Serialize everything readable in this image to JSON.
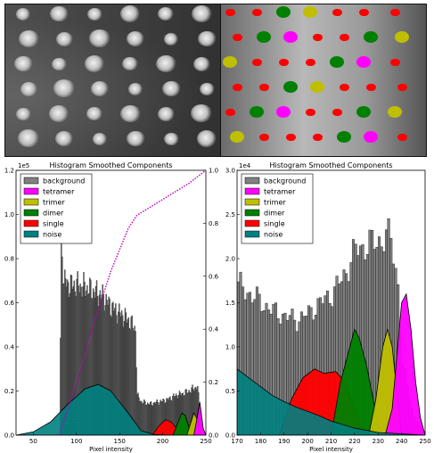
{
  "colors": {
    "background": "#808080",
    "tetramer": "#ff00ff",
    "trimer": "#bfbf00",
    "dimer": "#008000",
    "single": "#ff0000",
    "noise": "#008080",
    "cdf": "#bf00bf"
  },
  "images": {
    "left": {
      "description_icon": "grayscale-microscopy-image"
    },
    "right": {
      "description_icon": "segmented-label-image"
    }
  },
  "chart_data": [
    {
      "type": "area",
      "title": "Histogram Smoothed Components",
      "xlabel": "Pixel intensity",
      "ylabel": "",
      "yscale_label": "1e5",
      "xlim": [
        30,
        250
      ],
      "ylim": [
        0,
        120000
      ],
      "y2lim": [
        0,
        1.0
      ],
      "xticks": [
        50,
        100,
        150,
        200,
        250
      ],
      "xtick_labels": [
        "50",
        "100",
        "150",
        "200",
        "250"
      ],
      "yticks": [
        0,
        20000,
        40000,
        60000,
        80000,
        100000,
        120000
      ],
      "ytick_labels": [
        "0.0",
        "0.2",
        "0.4",
        "0.6",
        "0.8",
        "1.0",
        "1.2"
      ],
      "y2ticks": [
        0,
        0.2,
        0.4,
        0.6,
        0.8,
        1.0
      ],
      "y2tick_labels": [
        "0.0",
        "0.2",
        "0.4",
        "0.6",
        "0.8",
        "1.0"
      ],
      "legend_position": "top-left",
      "legend": [
        "background",
        "tetramer",
        "trimer",
        "dimer",
        "single",
        "noise"
      ],
      "series": [
        {
          "name": "background",
          "x": [
            80,
            82,
            85,
            90,
            100,
            110,
            120,
            130,
            140,
            150,
            160,
            168,
            170,
            175,
            185,
            195,
            205,
            215,
            225,
            235,
            240,
            245
          ],
          "values": [
            0,
            88000,
            70000,
            68000,
            68000,
            67000,
            65000,
            63000,
            58000,
            55000,
            52000,
            48000,
            18000,
            15000,
            14000,
            15000,
            16000,
            18000,
            19000,
            21000,
            22000,
            0
          ]
        },
        {
          "name": "tetramer",
          "x": [
            236,
            240,
            243,
            245,
            247,
            250
          ],
          "values": [
            0,
            8000,
            15000,
            9000,
            3000,
            0
          ]
        },
        {
          "name": "trimer",
          "x": [
            228,
            232,
            236,
            239,
            242,
            244
          ],
          "values": [
            0,
            5000,
            10000,
            8000,
            3000,
            0
          ]
        },
        {
          "name": "dimer",
          "x": [
            212,
            218,
            222,
            226,
            230,
            234
          ],
          "values": [
            0,
            6000,
            10000,
            9000,
            4000,
            0
          ]
        },
        {
          "name": "single",
          "x": [
            188,
            195,
            203,
            210,
            216,
            222
          ],
          "values": [
            0,
            4000,
            7000,
            6000,
            3000,
            0
          ]
        },
        {
          "name": "noise",
          "x": [
            30,
            50,
            70,
            90,
            110,
            125,
            140,
            160,
            175,
            190,
            210,
            250
          ],
          "values": [
            0,
            1500,
            6000,
            14000,
            21000,
            23000,
            20000,
            10000,
            2000,
            300,
            0,
            0
          ]
        },
        {
          "name": "cdf",
          "axis": "y2",
          "x": [
            80,
            100,
            120,
            140,
            160,
            170,
            190,
            210,
            230,
            250
          ],
          "values": [
            0,
            0.2,
            0.42,
            0.62,
            0.78,
            0.83,
            0.87,
            0.91,
            0.95,
            1.0
          ]
        }
      ]
    },
    {
      "type": "area",
      "title": "Histogram Smoothed Components",
      "xlabel": "Pixel intensity",
      "ylabel": "",
      "yscale_label": "1e4",
      "xlim": [
        170,
        250
      ],
      "ylim": [
        0,
        30000
      ],
      "xticks": [
        170,
        180,
        190,
        200,
        210,
        220,
        230,
        240,
        250
      ],
      "xtick_labels": [
        "170",
        "180",
        "190",
        "200",
        "210",
        "220",
        "230",
        "240",
        "250"
      ],
      "yticks": [
        0,
        5000,
        10000,
        15000,
        20000,
        25000,
        30000
      ],
      "ytick_labels": [
        "0.0",
        "0.5",
        "1.0",
        "1.5",
        "2.0",
        "2.5",
        "3.0"
      ],
      "legend_position": "top-left",
      "legend": [
        "background",
        "tetramer",
        "trimer",
        "dimer",
        "single",
        "noise"
      ],
      "series": [
        {
          "name": "background",
          "x": [
            170,
            175,
            180,
            185,
            190,
            195,
            200,
            205,
            210,
            215,
            220,
            225,
            230,
            235,
            238,
            240,
            245,
            250
          ],
          "values": [
            17000,
            16000,
            15000,
            14000,
            13500,
            13000,
            13800,
            15000,
            16000,
            18000,
            21000,
            21500,
            22000,
            22500,
            17000,
            8000,
            2000,
            0
          ]
        },
        {
          "name": "tetramer",
          "x": [
            233,
            236,
            238,
            240,
            242,
            244,
            246,
            248,
            250
          ],
          "values": [
            0,
            3000,
            9000,
            15000,
            16000,
            12000,
            6000,
            2000,
            0
          ]
        },
        {
          "name": "trimer",
          "x": [
            226,
            229,
            232,
            234,
            236,
            238,
            240
          ],
          "values": [
            0,
            4000,
            10000,
            12000,
            10000,
            5000,
            0
          ]
        },
        {
          "name": "dimer",
          "x": [
            210,
            214,
            218,
            220,
            222,
            225,
            228,
            231
          ],
          "values": [
            0,
            6000,
            10000,
            12000,
            11000,
            8000,
            4000,
            0
          ]
        },
        {
          "name": "single",
          "x": [
            188,
            193,
            198,
            203,
            207,
            212,
            216,
            220,
            224
          ],
          "values": [
            0,
            4000,
            6500,
            7500,
            7000,
            7200,
            6000,
            3000,
            0
          ]
        },
        {
          "name": "noise",
          "x": [
            170,
            175,
            180,
            185,
            190,
            195,
            200,
            205,
            210,
            220,
            230,
            250
          ],
          "values": [
            7500,
            6500,
            5500,
            4500,
            3800,
            3200,
            2700,
            2200,
            1600,
            800,
            300,
            0
          ]
        }
      ]
    }
  ]
}
